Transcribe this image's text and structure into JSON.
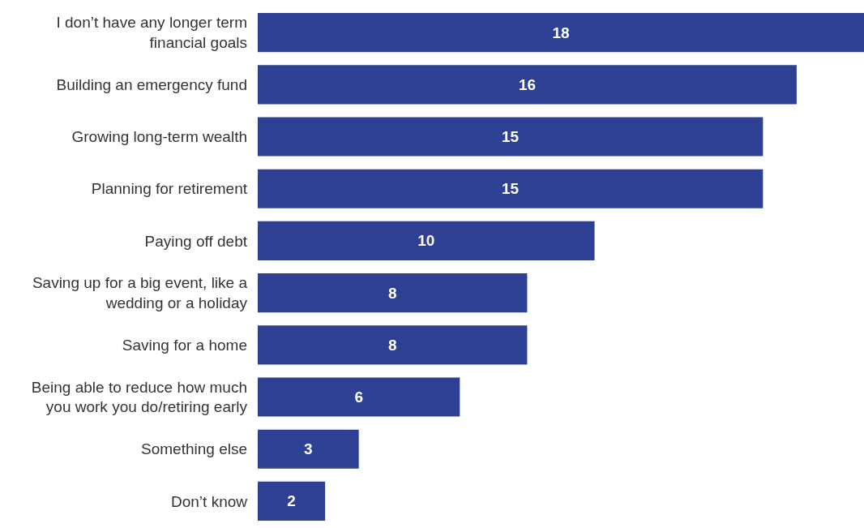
{
  "chart_data": {
    "type": "bar",
    "orientation": "horizontal",
    "categories": [
      "I don’t have any longer term\nfinancial goals",
      "Building an emergency fund",
      "Growing long-term wealth",
      "Planning for retirement",
      "Paying off debt",
      "Saving up for a big event, like a\nwedding or a holiday",
      "Saving for a home",
      "Being able to reduce how much\nyou work you do/retiring early",
      "Something else",
      "Don’t know"
    ],
    "values": [
      18,
      16,
      15,
      15,
      10,
      8,
      8,
      6,
      3,
      2
    ],
    "color": "#2e4094",
    "xlim": [
      0,
      18
    ],
    "data_labels": true,
    "tick_labels": "y",
    "grid": false,
    "legend": false
  }
}
